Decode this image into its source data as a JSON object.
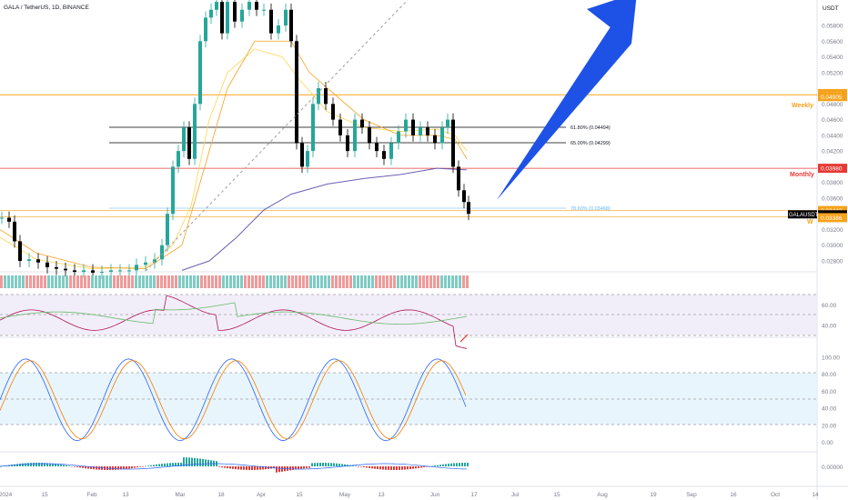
{
  "header": {
    "symbol_title": "GALA / TetherUS, 1D, BINANCE"
  },
  "price_axis": {
    "currency": "USDT",
    "ticks": [
      "0.05800",
      "0.05600",
      "0.05400",
      "0.05200",
      "0.04800",
      "0.04600",
      "0.04400",
      "0.04200",
      "0.03800",
      "0.03600",
      "0.03200",
      "0.03000",
      "0.02800"
    ],
    "tick_values": [
      0.058,
      0.056,
      0.054,
      0.052,
      0.048,
      0.046,
      0.044,
      0.042,
      0.038,
      0.036,
      0.032,
      0.03,
      0.028
    ]
  },
  "price_labels": [
    {
      "text": "0.04932",
      "value": 0.04932,
      "color": "#f7a21b"
    },
    {
      "text": "0.04905",
      "value": 0.04905,
      "color": "#f7a21b"
    },
    {
      "text": "0.03980",
      "value": 0.0398,
      "color": "#e53935"
    },
    {
      "text": "0.03442",
      "value": 0.03442,
      "color": "#f7a21b"
    },
    {
      "text": "0.03399",
      "value": 0.03399,
      "color": "#000000"
    },
    {
      "text": "0.03386",
      "value": 0.03386,
      "color": "#f7a21b"
    }
  ],
  "current_symbol_label": "GALAUSDT",
  "level_labels": {
    "weekly": "Weekly",
    "monthly": "Monthly",
    "w": "W"
  },
  "fib_labels": [
    {
      "text": "61.80% (0.04494)",
      "value": 0.04494
    },
    {
      "text": "65.00% (0.04299)",
      "value": 0.04299
    },
    {
      "text": "78.60% (0.03468)",
      "value": 0.03468
    }
  ],
  "rsi_axis": {
    "ticks": [
      "60.00",
      "40.00"
    ],
    "tick_values": [
      60,
      40
    ]
  },
  "stoch_axis": {
    "ticks": [
      "100.00",
      "80.00",
      "60.00",
      "40.00",
      "20.00",
      "0.00"
    ],
    "tick_values": [
      100,
      80,
      60,
      40,
      20,
      0
    ]
  },
  "macd_axis": {
    "ticks": [
      "0.00000"
    ]
  },
  "time_axis": [
    "2024",
    "15",
    "Feb",
    "13",
    "Mar",
    "18",
    "Apr",
    "15",
    "May",
    "13",
    "Jun",
    "17",
    "Jul",
    "15",
    "Aug",
    "19",
    "Sep",
    "16",
    "Oct",
    "14"
  ],
  "colors": {
    "up": "#26a69a",
    "down": "#000000",
    "weekly": "#f7a21b",
    "monthly": "#e53935",
    "ma_long": "#6b5fb5",
    "ma_mid": "#f7a21b",
    "ma_fast": "#ffd54f",
    "arrow": "#1e52e6",
    "rsi": "#ad1457",
    "stoch_k": "#2962ff",
    "stoch_d": "#f57c00"
  },
  "chart_data": {
    "type": "candlestick",
    "title": "GALA / TetherUS, 1D, BINANCE",
    "x": [
      "2024-01-01",
      "2024-01-15",
      "2024-02-01",
      "2024-02-13",
      "2024-03-01",
      "2024-03-18",
      "2024-04-01",
      "2024-04-15",
      "2024-05-01",
      "2024-05-13",
      "2024-06-01",
      "2024-06-10"
    ],
    "close_approx": [
      0.032,
      0.0285,
      0.027,
      0.0275,
      0.046,
      0.056,
      0.059,
      0.043,
      0.048,
      0.0435,
      0.045,
      0.034
    ],
    "last_price": 0.03399,
    "horizontal_levels": [
      {
        "name": "Weekly",
        "value": 0.04905
      },
      {
        "name": "Monthly",
        "value": 0.0398
      },
      {
        "name": "W",
        "value": 0.03386
      }
    ],
    "fib_levels": [
      {
        "ratio": 0.618,
        "value": 0.04494
      },
      {
        "ratio": 0.65,
        "value": 0.04299
      },
      {
        "ratio": 0.786,
        "value": 0.03468
      }
    ],
    "ylim": [
      0.027,
      0.06
    ],
    "indicators": [
      "RSI",
      "Stochastic",
      "MACD"
    ]
  }
}
